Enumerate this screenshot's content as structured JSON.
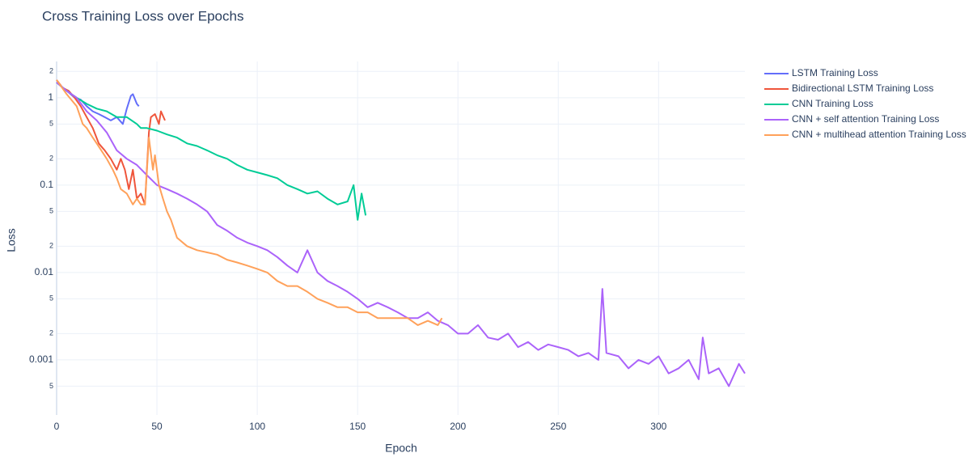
{
  "chart_data": {
    "type": "line",
    "title": "Cross Training Loss over Epochs",
    "x_label": "Epoch",
    "y_label": "Loss",
    "log_y": true,
    "grid": true,
    "legend": "right",
    "xlim": [
      0,
      343
    ],
    "xticks": [
      0,
      50,
      100,
      150,
      200,
      250,
      300
    ],
    "ylim": [
      0.000234,
      2.6
    ],
    "yticks": [
      2,
      1,
      {
        "value": 0.5,
        "label": "5"
      },
      {
        "value": 0.2,
        "label": "2"
      },
      0.1,
      {
        "value": 0.05,
        "label": "5"
      },
      {
        "value": 0.02,
        "label": "2"
      },
      0.01,
      {
        "value": 0.005,
        "label": "5"
      },
      {
        "value": 0.002,
        "label": "2"
      },
      0.001,
      {
        "value": 0.0005,
        "label": "5"
      }
    ],
    "series": [
      {
        "name": "LSTM Training Loss",
        "color": "#636efa",
        "x": [
          0,
          3,
          6,
          9,
          12,
          15,
          18,
          21,
          24,
          27,
          30,
          33,
          35,
          37,
          38,
          40,
          41
        ],
        "values": [
          1.5,
          1.3,
          1.15,
          1.0,
          0.95,
          0.8,
          0.7,
          0.65,
          0.6,
          0.55,
          0.6,
          0.5,
          0.75,
          1.05,
          1.1,
          0.85,
          0.8
        ]
      },
      {
        "name": "Bidirectional LSTM Training Loss",
        "color": "#EF553B",
        "x": [
          0,
          3,
          6,
          9,
          12,
          15,
          18,
          21,
          24,
          27,
          30,
          32,
          34,
          36,
          38,
          40,
          42,
          44,
          46,
          47,
          49,
          51,
          52,
          54
        ],
        "values": [
          1.6,
          1.3,
          1.2,
          1.0,
          0.8,
          0.6,
          0.45,
          0.3,
          0.25,
          0.2,
          0.15,
          0.2,
          0.15,
          0.09,
          0.15,
          0.07,
          0.08,
          0.06,
          0.4,
          0.6,
          0.65,
          0.5,
          0.7,
          0.55
        ]
      },
      {
        "name": "CNN Training Loss",
        "color": "#00cc96",
        "x": [
          0,
          5,
          10,
          15,
          20,
          25,
          30,
          35,
          40,
          42,
          45,
          50,
          55,
          60,
          65,
          70,
          75,
          80,
          85,
          90,
          95,
          100,
          105,
          110,
          115,
          120,
          125,
          130,
          135,
          140,
          145,
          148,
          150,
          152,
          154
        ],
        "values": [
          1.5,
          1.2,
          1.0,
          0.85,
          0.75,
          0.7,
          0.6,
          0.6,
          0.5,
          0.45,
          0.45,
          0.42,
          0.38,
          0.35,
          0.3,
          0.28,
          0.25,
          0.22,
          0.2,
          0.17,
          0.15,
          0.14,
          0.13,
          0.12,
          0.1,
          0.09,
          0.08,
          0.085,
          0.07,
          0.06,
          0.065,
          0.1,
          0.04,
          0.08,
          0.045
        ]
      },
      {
        "name": "CNN + self attention Training Loss",
        "color": "#ab63fa",
        "x": [
          0,
          5,
          10,
          15,
          20,
          25,
          30,
          35,
          40,
          45,
          50,
          55,
          60,
          65,
          70,
          75,
          80,
          85,
          90,
          95,
          100,
          105,
          110,
          115,
          120,
          125,
          130,
          135,
          140,
          145,
          150,
          155,
          160,
          165,
          170,
          175,
          180,
          185,
          190,
          195,
          200,
          205,
          210,
          215,
          220,
          225,
          230,
          235,
          240,
          245,
          250,
          255,
          260,
          265,
          270,
          272,
          274,
          280,
          285,
          290,
          295,
          300,
          305,
          310,
          315,
          320,
          322,
          325,
          330,
          335,
          340,
          343
        ],
        "values": [
          1.5,
          1.2,
          1.0,
          0.7,
          0.55,
          0.4,
          0.25,
          0.2,
          0.17,
          0.13,
          0.1,
          0.09,
          0.08,
          0.07,
          0.06,
          0.05,
          0.035,
          0.03,
          0.025,
          0.022,
          0.02,
          0.018,
          0.015,
          0.012,
          0.01,
          0.018,
          0.01,
          0.008,
          0.007,
          0.006,
          0.005,
          0.004,
          0.0045,
          0.004,
          0.0035,
          0.003,
          0.003,
          0.0035,
          0.0028,
          0.0025,
          0.002,
          0.002,
          0.0025,
          0.0018,
          0.0017,
          0.002,
          0.0014,
          0.0016,
          0.0013,
          0.0015,
          0.0014,
          0.0013,
          0.0011,
          0.0012,
          0.001,
          0.0065,
          0.0012,
          0.0011,
          0.0008,
          0.001,
          0.0009,
          0.0011,
          0.0007,
          0.0008,
          0.001,
          0.0006,
          0.0018,
          0.0007,
          0.0008,
          0.0005,
          0.0009,
          0.0007
        ]
      },
      {
        "name": "CNN + multihead attention Training Loss",
        "color": "#FFA15A",
        "x": [
          0,
          5,
          10,
          13,
          15,
          18,
          20,
          25,
          28,
          30,
          32,
          35,
          38,
          40,
          42,
          44,
          46,
          48,
          49,
          51,
          53,
          55,
          57,
          60,
          65,
          70,
          75,
          80,
          85,
          90,
          95,
          100,
          105,
          110,
          115,
          120,
          125,
          130,
          135,
          140,
          145,
          150,
          155,
          160,
          165,
          170,
          175,
          180,
          185,
          190,
          192
        ],
        "values": [
          1.6,
          1.1,
          0.8,
          0.5,
          0.45,
          0.35,
          0.3,
          0.2,
          0.15,
          0.12,
          0.09,
          0.08,
          0.06,
          0.07,
          0.06,
          0.06,
          0.35,
          0.15,
          0.22,
          0.1,
          0.07,
          0.05,
          0.04,
          0.025,
          0.02,
          0.018,
          0.017,
          0.016,
          0.014,
          0.013,
          0.012,
          0.011,
          0.01,
          0.008,
          0.007,
          0.007,
          0.006,
          0.005,
          0.0045,
          0.004,
          0.004,
          0.0035,
          0.0035,
          0.003,
          0.003,
          0.003,
          0.003,
          0.0025,
          0.0028,
          0.0025,
          0.003
        ]
      }
    ]
  }
}
